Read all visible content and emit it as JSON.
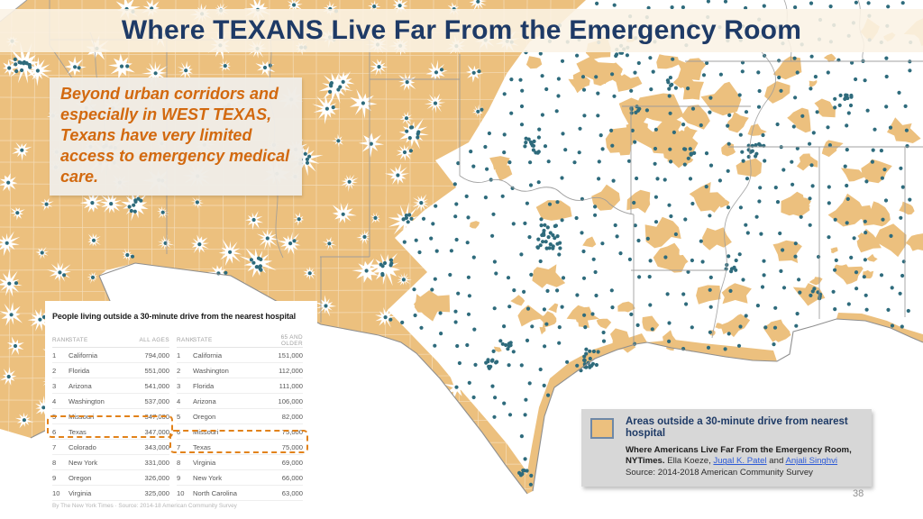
{
  "slide": {
    "title": "Where TEXANS Live Far From the Emergency Room",
    "page_number": "38"
  },
  "callout": {
    "text": "Beyond urban corridors and especially in WEST TEXAS, Texans have very limited access to emergency medical care."
  },
  "table": {
    "title": "People living outside a 30-minute drive from the nearest hospital",
    "left": {
      "headers": [
        "RANK",
        "STATE",
        "ALL AGES"
      ],
      "rows": [
        [
          "1",
          "California",
          "794,000"
        ],
        [
          "2",
          "Florida",
          "551,000"
        ],
        [
          "3",
          "Arizona",
          "541,000"
        ],
        [
          "4",
          "Washington",
          "537,000"
        ],
        [
          "5",
          "Missouri",
          "347,000"
        ],
        [
          "6",
          "Texas",
          "347,000"
        ],
        [
          "7",
          "Colorado",
          "343,000"
        ],
        [
          "8",
          "New York",
          "331,000"
        ],
        [
          "9",
          "Oregon",
          "326,000"
        ],
        [
          "10",
          "Virginia",
          "325,000"
        ]
      ],
      "highlighted_row_index": 5
    },
    "right": {
      "headers": [
        "RANK",
        "STATE",
        "65 AND OLDER"
      ],
      "rows": [
        [
          "1",
          "California",
          "151,000"
        ],
        [
          "2",
          "Washington",
          "112,000"
        ],
        [
          "3",
          "Florida",
          "111,000"
        ],
        [
          "4",
          "Arizona",
          "106,000"
        ],
        [
          "5",
          "Oregon",
          "82,000"
        ],
        [
          "6",
          "Missouri",
          "75,000"
        ],
        [
          "7",
          "Texas",
          "75,000"
        ],
        [
          "8",
          "Virginia",
          "69,000"
        ],
        [
          "9",
          "New York",
          "66,000"
        ],
        [
          "10",
          "North Carolina",
          "63,000"
        ]
      ],
      "highlighted_row_index": 6
    },
    "footer": "By The New York Times · Source: 2014-18 American Community Survey"
  },
  "legend": {
    "swatch_label": "Areas outside a 30-minute drive from nearest hospital",
    "citation_bold": "Where Americans Live Far From the Emergency Room, NYTimes.",
    "citation_authors_prefix": " Ella Koeze, ",
    "citation_link1": "Jugal K. Patel",
    "citation_and": " and ",
    "citation_link2": "Anjali Singhvi",
    "source_line": "Source: 2014-2018 American Community Survey"
  },
  "colors": {
    "title_navy": "#1E3A66",
    "callout_orange": "#D2690F",
    "map_outside_tan": "#ECC07E",
    "hospital_dot_teal": "#2E6B7C",
    "state_line_gray": "#9B9B9B",
    "border_gray": "#8F8F8F",
    "county_line_white": "#FFFFFF",
    "highlight_dashed_orange": "#E2821A",
    "legend_bg_gray": "#D7D7D7",
    "legend_swatch_border_blue": "#6E88A7",
    "link_blue": "#2E5BD7"
  },
  "chart_data": [
    {
      "type": "table",
      "title": "People living outside a 30-minute drive from the nearest hospital",
      "columns": [
        "RANK",
        "STATE",
        "ALL AGES"
      ],
      "rows": [
        [
          "1",
          "California",
          "794,000"
        ],
        [
          "2",
          "Florida",
          "551,000"
        ],
        [
          "3",
          "Arizona",
          "541,000"
        ],
        [
          "4",
          "Washington",
          "537,000"
        ],
        [
          "5",
          "Missouri",
          "347,000"
        ],
        [
          "6",
          "Texas",
          "347,000"
        ],
        [
          "7",
          "Colorado",
          "343,000"
        ],
        [
          "8",
          "New York",
          "331,000"
        ],
        [
          "9",
          "Oregon",
          "326,000"
        ],
        [
          "10",
          "Virginia",
          "325,000"
        ]
      ],
      "highlight": "Texas ranked 6 with 347,000"
    },
    {
      "type": "table",
      "title": "People living outside a 30-minute drive from the nearest hospital",
      "columns": [
        "RANK",
        "STATE",
        "65 AND OLDER"
      ],
      "rows": [
        [
          "1",
          "California",
          "151,000"
        ],
        [
          "2",
          "Washington",
          "112,000"
        ],
        [
          "3",
          "Florida",
          "111,000"
        ],
        [
          "4",
          "Arizona",
          "106,000"
        ],
        [
          "5",
          "Oregon",
          "82,000"
        ],
        [
          "6",
          "Missouri",
          "75,000"
        ],
        [
          "7",
          "Texas",
          "75,000"
        ],
        [
          "8",
          "Virginia",
          "69,000"
        ],
        [
          "9",
          "New York",
          "66,000"
        ],
        [
          "10",
          "North Carolina",
          "63,000"
        ]
      ],
      "highlight": "Texas ranked 7 with 75,000"
    }
  ]
}
